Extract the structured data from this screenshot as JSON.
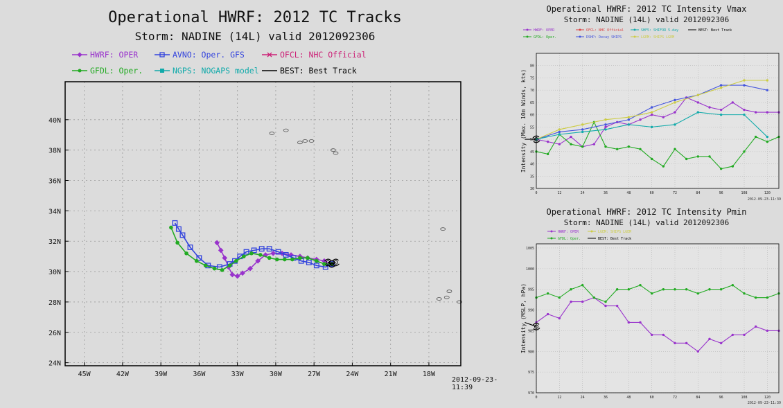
{
  "track_panel": {
    "title": "Operational HWRF: 2012 TC Tracks",
    "subtitle": "Storm: NADINE (14L) valid 2012092306",
    "legend": [
      {
        "key": "HWRF",
        "label": "HWRF: OPER",
        "color": "#9933cc"
      },
      {
        "key": "AVNO",
        "label": "AVNO: Oper. GFS",
        "color": "#3344dd"
      },
      {
        "key": "OFCL",
        "label": "OFCL: NHC Official",
        "color": "#cc2277"
      },
      {
        "key": "GFDL",
        "label": "GFDL: Oper.",
        "color": "#22aa22"
      },
      {
        "key": "NGPS",
        "label": "NGPS: NOGAPS model",
        "color": "#11aaaa"
      },
      {
        "key": "BEST",
        "label": "BEST: Best Track",
        "color": "#000000"
      }
    ],
    "timestamp": "2012-09-23-11:39"
  },
  "vmax_panel": {
    "title": "Operational HWRF: 2012 TC Intensity Vmax",
    "subtitle": "Storm: NADINE (14L) valid 2012092306",
    "legend": [
      {
        "label": "HWRF: OPER",
        "color": "#9933cc"
      },
      {
        "label": "OFCL: NHC Official",
        "color": "#dd4444"
      },
      {
        "label": "SHF5: SHIFOR 5-day",
        "color": "#11aaaa"
      },
      {
        "label": "BEST: Best Track",
        "color": "#000000"
      },
      {
        "label": "GFDL: Oper.",
        "color": "#22aa22"
      },
      {
        "label": "DSHP: Decay SHIPS",
        "color": "#4455dd"
      },
      {
        "label": "LGEM: SHIPS LGEM",
        "color": "#cccc44"
      }
    ],
    "footer": "2012-09-23-11:39"
  },
  "pmin_panel": {
    "title": "Operational HWRF: 2012 TC Intensity Pmin",
    "subtitle": "Storm: NADINE (14L) valid 2012092306",
    "legend": [
      {
        "label": "HWRF: OPER",
        "color": "#9933cc"
      },
      {
        "label": "LGEM: SHIPS LGEM",
        "color": "#cccc44"
      },
      {
        "label": "GFDL: Oper.",
        "color": "#22aa22"
      },
      {
        "label": "BEST: Best Track",
        "color": "#000000"
      }
    ],
    "footer": "2012-09-23-11:39"
  },
  "chart_data": [
    {
      "type": "scatter",
      "title": "Operational HWRF: 2012 TC Tracks",
      "subtitle": "Storm: NADINE (14L) valid 2012092306",
      "xlabel": "",
      "ylabel": "",
      "xlim": [
        -46.5,
        -15.5
      ],
      "ylim": [
        23.8,
        42.5
      ],
      "x_ticks": [
        -45,
        -42,
        -39,
        -36,
        -33,
        -30,
        -27,
        -24,
        -21,
        -18
      ],
      "x_tick_labels": [
        "45W",
        "42W",
        "39W",
        "36W",
        "33W",
        "30W",
        "27W",
        "24W",
        "21W",
        "18W"
      ],
      "y_ticks": [
        24,
        26,
        28,
        30,
        32,
        34,
        36,
        38,
        40
      ],
      "y_tick_labels": [
        "24N",
        "26N",
        "28N",
        "30N",
        "32N",
        "34N",
        "36N",
        "38N",
        "40N"
      ],
      "grid": true,
      "series": [
        {
          "name": "HWRF: OPER",
          "marker": "diamond",
          "x": [
            -25.6,
            -26.2,
            -26.8,
            -27.5,
            -28.1,
            -28.8,
            -29.5,
            -30.2,
            -30.8,
            -31.4,
            -32.0,
            -32.6,
            -33.0,
            -33.4,
            -33.7,
            -34.0,
            -34.3,
            -34.6
          ],
          "y": [
            30.5,
            30.7,
            30.8,
            30.9,
            31.0,
            31.1,
            31.2,
            31.2,
            31.1,
            30.7,
            30.2,
            29.9,
            29.7,
            29.8,
            30.3,
            30.9,
            31.4,
            31.9
          ]
        },
        {
          "name": "AVNO: Oper. GFS",
          "marker": "square",
          "x": [
            -25.6,
            -26.1,
            -26.8,
            -27.4,
            -28.0,
            -28.6,
            -29.2,
            -29.8,
            -30.5,
            -31.1,
            -31.7,
            -32.3,
            -32.8,
            -33.2,
            -33.6,
            -34.4,
            -35.3,
            -36.0,
            -36.7,
            -37.3,
            -37.6,
            -37.9
          ],
          "y": [
            30.5,
            30.3,
            30.4,
            30.6,
            30.7,
            30.9,
            31.1,
            31.3,
            31.5,
            31.5,
            31.4,
            31.3,
            31.0,
            30.7,
            30.5,
            30.3,
            30.4,
            30.9,
            31.6,
            32.4,
            32.8,
            33.2
          ]
        },
        {
          "name": "GFDL: Oper.",
          "marker": "circle",
          "x": [
            -25.6,
            -26.2,
            -26.8,
            -27.5,
            -28.1,
            -28.7,
            -29.3,
            -29.9,
            -30.5,
            -31.2,
            -31.9,
            -32.5,
            -33.1,
            -33.6,
            -34.2,
            -34.8,
            -35.5,
            -36.2,
            -37.0,
            -37.7,
            -38.2
          ],
          "y": [
            30.5,
            30.5,
            30.7,
            30.9,
            30.9,
            30.8,
            30.8,
            30.8,
            30.9,
            31.1,
            31.2,
            31.0,
            30.7,
            30.4,
            30.1,
            30.2,
            30.4,
            30.7,
            31.2,
            31.9,
            32.9
          ]
        },
        {
          "name": "BEST: Best Track",
          "marker": "hurricane",
          "x": [
            -25.9,
            -25.6,
            -25.3
          ],
          "y": [
            30.6,
            30.5,
            30.6
          ]
        }
      ]
    },
    {
      "type": "line",
      "title": "Operational HWRF: 2012 TC Intensity Vmax",
      "subtitle": "Storm: NADINE (14L) valid 2012092306",
      "xlabel": "",
      "ylabel": "Intensity (Max. 10m Winds, kts)",
      "xlim": [
        0,
        126
      ],
      "ylim": [
        30,
        85
      ],
      "x_ticks": [
        0,
        12,
        24,
        36,
        48,
        60,
        72,
        84,
        96,
        108,
        120
      ],
      "y_ticks": [
        30,
        35,
        40,
        45,
        50,
        55,
        60,
        65,
        70,
        75,
        80
      ],
      "grid": true,
      "series": [
        {
          "name": "HWRF: OPER",
          "color": "#9933cc",
          "x": [
            0,
            6,
            12,
            18,
            24,
            30,
            36,
            42,
            48,
            54,
            60,
            66,
            72,
            78,
            84,
            90,
            96,
            102,
            108,
            114,
            120,
            126
          ],
          "y": [
            50,
            49,
            48,
            51,
            47,
            48,
            55,
            57,
            56,
            58,
            60,
            59,
            61,
            67,
            65,
            63,
            62,
            65,
            62,
            61,
            61,
            61
          ]
        },
        {
          "name": "GFDL: Oper.",
          "color": "#22aa22",
          "x": [
            0,
            6,
            12,
            18,
            24,
            30,
            36,
            42,
            48,
            54,
            60,
            66,
            72,
            78,
            84,
            90,
            96,
            102,
            108,
            114,
            120,
            126
          ],
          "y": [
            45,
            44,
            52,
            48,
            47,
            57,
            47,
            46,
            47,
            46,
            42,
            39,
            46,
            42,
            43,
            43,
            38,
            39,
            45,
            51,
            49,
            51
          ]
        },
        {
          "name": "DSHP: Decay SHIPS",
          "color": "#4455dd",
          "x": [
            0,
            12,
            24,
            36,
            48,
            60,
            72,
            84,
            96,
            108,
            120
          ],
          "y": [
            50,
            53,
            54,
            56,
            58,
            63,
            66,
            68,
            72,
            72,
            70
          ]
        },
        {
          "name": "LGEM: SHIPS LGEM",
          "color": "#cccc44",
          "x": [
            0,
            12,
            24,
            36,
            48,
            60,
            72,
            84,
            96,
            108,
            120
          ],
          "y": [
            50,
            54,
            56,
            58,
            59,
            61,
            65,
            68,
            71,
            74,
            74
          ]
        },
        {
          "name": "SHF5: SHIFOR 5-day",
          "color": "#11aaaa",
          "x": [
            0,
            12,
            24,
            36,
            48,
            60,
            72,
            84,
            96,
            108,
            120
          ],
          "y": [
            50,
            52,
            53,
            54,
            56,
            55,
            56,
            61,
            60,
            60,
            51
          ]
        },
        {
          "name": "BEST: Best Track",
          "color": "#000000",
          "x": [
            -6,
            0
          ],
          "y": [
            50,
            50
          ]
        }
      ]
    },
    {
      "type": "line",
      "title": "Operational HWRF: 2012 TC Intensity Pmin",
      "subtitle": "Storm: NADINE (14L) valid 2012092306",
      "xlabel": "",
      "ylabel": "Intensity (MSLP, hPa)",
      "xlim": [
        0,
        126
      ],
      "ylim": [
        970,
        1006
      ],
      "x_ticks": [
        0,
        12,
        24,
        36,
        48,
        60,
        72,
        84,
        96,
        108,
        120
      ],
      "y_ticks": [
        970,
        975,
        980,
        985,
        990,
        995,
        1000,
        1005
      ],
      "grid": true,
      "series": [
        {
          "name": "HWRF: OPER",
          "color": "#9933cc",
          "x": [
            0,
            6,
            12,
            18,
            24,
            30,
            36,
            42,
            48,
            54,
            60,
            66,
            72,
            78,
            84,
            90,
            96,
            102,
            108,
            114,
            120,
            126
          ],
          "y": [
            987,
            989,
            988,
            992,
            992,
            993,
            991,
            991,
            987,
            987,
            984,
            984,
            982,
            982,
            980,
            983,
            982,
            984,
            984,
            986,
            985,
            985
          ]
        },
        {
          "name": "GFDL: Oper.",
          "color": "#22aa22",
          "x": [
            0,
            6,
            12,
            18,
            24,
            30,
            36,
            42,
            48,
            54,
            60,
            66,
            72,
            78,
            84,
            90,
            96,
            102,
            108,
            114,
            120,
            126
          ],
          "y": [
            993,
            994,
            993,
            995,
            996,
            993,
            992,
            995,
            995,
            996,
            994,
            995,
            995,
            995,
            994,
            995,
            995,
            996,
            994,
            993,
            993,
            994
          ]
        },
        {
          "name": "BEST: Best Track",
          "color": "#000000",
          "x": [
            -6,
            0
          ],
          "y": [
            987,
            986
          ]
        }
      ]
    }
  ]
}
